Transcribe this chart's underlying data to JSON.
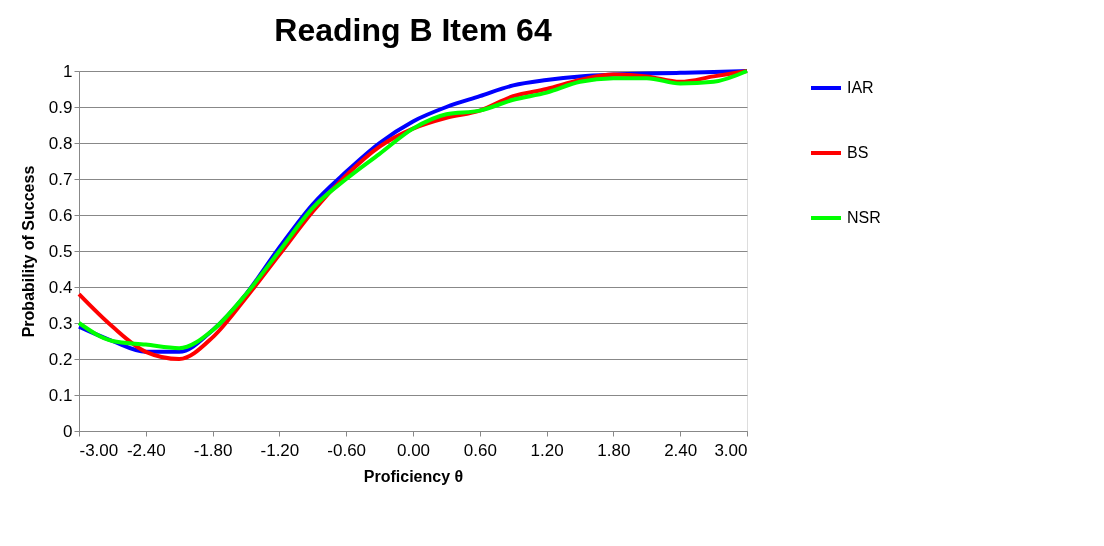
{
  "chart_data": {
    "type": "line",
    "title": "Reading B Item 64",
    "xlabel": "Proficiency θ",
    "ylabel": "Probability of Success",
    "x": [
      -3,
      -2.7,
      -2.4,
      -2.1,
      -1.8,
      -1.5,
      -1.2,
      -0.9,
      -0.6,
      -0.3,
      0,
      0.3,
      0.6,
      0.9,
      1.2,
      1.5,
      1.8,
      2.1,
      2.4,
      2.7,
      3
    ],
    "series": [
      {
        "name": "IAR",
        "color": "#0000ff",
        "values": [
          0.29,
          0.25,
          0.22,
          0.22,
          0.28,
          0.38,
          0.51,
          0.63,
          0.72,
          0.8,
          0.86,
          0.9,
          0.93,
          0.96,
          0.975,
          0.985,
          0.99,
          0.993,
          0.995,
          0.997,
          1.0
        ]
      },
      {
        "name": "BS",
        "color": "#ff0000",
        "values": [
          0.38,
          0.29,
          0.22,
          0.2,
          0.26,
          0.37,
          0.49,
          0.61,
          0.71,
          0.79,
          0.84,
          0.87,
          0.89,
          0.93,
          0.95,
          0.975,
          0.99,
          0.985,
          0.97,
          0.985,
          1.0
        ]
      },
      {
        "name": "NSR",
        "color": "#00ff00",
        "values": [
          0.3,
          0.25,
          0.24,
          0.23,
          0.28,
          0.38,
          0.5,
          0.62,
          0.7,
          0.77,
          0.84,
          0.88,
          0.89,
          0.92,
          0.94,
          0.97,
          0.98,
          0.98,
          0.965,
          0.97,
          1.0
        ]
      }
    ],
    "xlim": [
      -3,
      3
    ],
    "xticks": [
      {
        "value": -3,
        "label": "-3.00"
      },
      {
        "value": -2.4,
        "label": "-2.40"
      },
      {
        "value": -1.8,
        "label": "-1.80"
      },
      {
        "value": -1.2,
        "label": "-1.20"
      },
      {
        "value": -0.6,
        "label": "-0.60"
      },
      {
        "value": 0,
        "label": "0.00"
      },
      {
        "value": 0.6,
        "label": "0.60"
      },
      {
        "value": 1.2,
        "label": "1.20"
      },
      {
        "value": 1.8,
        "label": "1.80"
      },
      {
        "value": 2.4,
        "label": "2.40"
      },
      {
        "value": 3,
        "label": "3.00"
      }
    ],
    "ylim": [
      0,
      1
    ],
    "yticks": [
      0,
      0.1,
      0.2,
      0.3,
      0.4,
      0.5,
      0.6,
      0.7,
      0.8,
      0.9,
      1
    ],
    "grid": "y",
    "legend": "right",
    "marker": "none",
    "line_style": "solid"
  }
}
